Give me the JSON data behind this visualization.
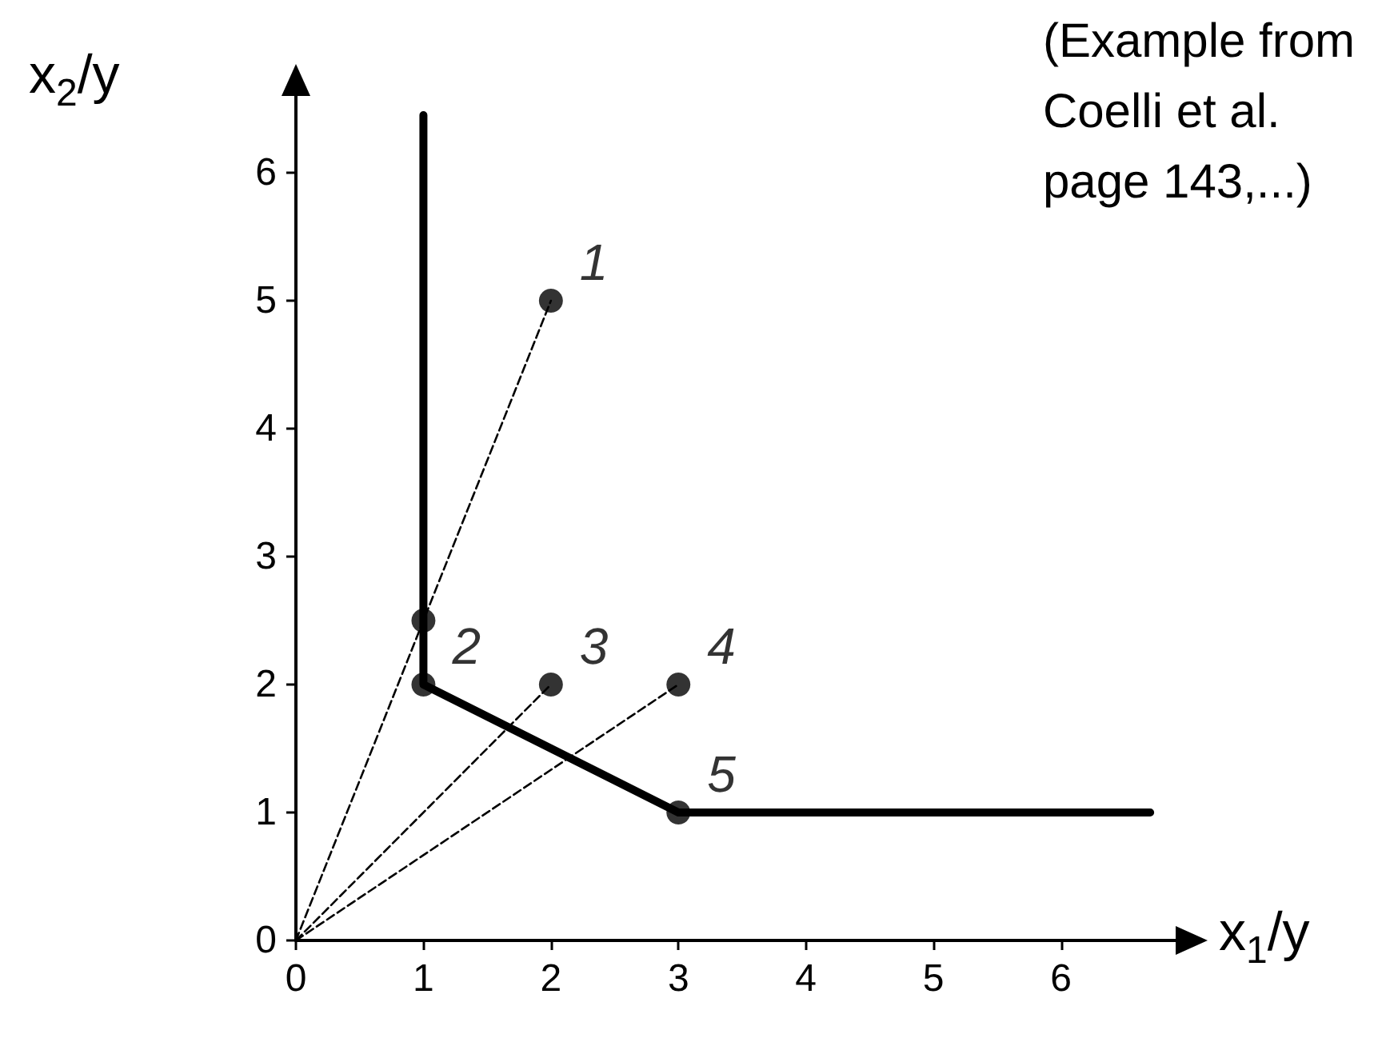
{
  "chart_data": {
    "type": "scatter",
    "xlabel": "x$_{1}$/y",
    "ylabel": "x$_{2}$/y",
    "xlim": [
      0,
      6.9
    ],
    "ylim": [
      0,
      6.6
    ],
    "xticks": [
      0,
      1,
      2,
      3,
      4,
      5,
      6
    ],
    "yticks": [
      0,
      1,
      2,
      3,
      4,
      5,
      6
    ],
    "grid": false,
    "series": [
      {
        "type": "line",
        "color": "#000000",
        "line_style": "solid",
        "marker": "none",
        "x": [
          1,
          1,
          3,
          6.7
        ],
        "values": [
          6.45,
          2,
          1,
          1
        ]
      },
      {
        "type": "line",
        "color": "#000000",
        "line_style": "dashed",
        "marker": "none",
        "x": [
          0,
          2
        ],
        "values": [
          0,
          5
        ]
      },
      {
        "type": "line",
        "color": "#000000",
        "line_style": "dashed",
        "marker": "none",
        "x": [
          0,
          2
        ],
        "values": [
          0,
          2
        ]
      },
      {
        "type": "line",
        "color": "#000000",
        "line_style": "dashed",
        "marker": "none",
        "x": [
          0,
          3
        ],
        "values": [
          0,
          2
        ]
      },
      {
        "color": "#000000",
        "marker": "circle",
        "x": [
          2,
          1,
          2,
          3,
          3,
          1
        ],
        "values": [
          5,
          2,
          2,
          2,
          1,
          2.5
        ]
      }
    ],
    "annotations": [
      "(Example from Coelli et al. page 143,...)",
      {
        "text": "1",
        "x": 2,
        "y": 5
      },
      {
        "text": "2",
        "x": 1,
        "y": 2
      },
      {
        "text": "3",
        "x": 2,
        "y": 2
      },
      {
        "text": "4",
        "x": 3,
        "y": 2
      },
      {
        "text": "5",
        "x": 3,
        "y": 1
      }
    ]
  }
}
